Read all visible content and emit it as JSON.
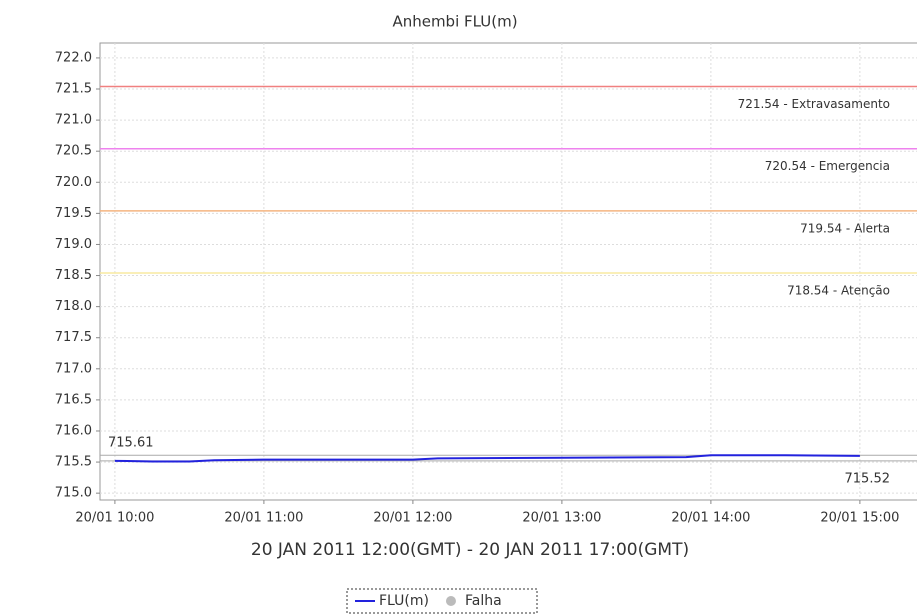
{
  "chart_data": {
    "type": "line",
    "title": "Anhembi FLU(m)",
    "subtitle": "20 JAN 2011 12:00(GMT) - 20 JAN 2011 17:00(GMT)",
    "x": [
      "20/01 10:00",
      "20/01 10:15",
      "20/01 10:30",
      "20/01 10:40",
      "20/01 11:00",
      "20/01 11:30",
      "20/01 12:00",
      "20/01 12:10",
      "20/01 13:00",
      "20/01 13:50",
      "20/01 14:00",
      "20/01 14:30",
      "20/01 15:00"
    ],
    "series": [
      {
        "name": "FLU(m)",
        "color": "#2222dd",
        "values": [
          715.52,
          715.51,
          715.51,
          715.53,
          715.54,
          715.54,
          715.54,
          715.56,
          715.57,
          715.58,
          715.61,
          715.61,
          715.6
        ]
      },
      {
        "name": "Falha",
        "color": "#bbbbbb",
        "values": [
          null,
          null,
          null,
          null,
          null,
          null,
          null,
          null,
          null,
          null,
          null,
          null,
          null
        ]
      }
    ],
    "thresholds": [
      {
        "value": 721.54,
        "label": "721.54 - Extravasamento",
        "color": "#f08080"
      },
      {
        "value": 720.54,
        "label": "720.54 - Emergencia",
        "color": "#ee82ee"
      },
      {
        "value": 719.54,
        "label": "719.54 - Alerta",
        "color": "#f4b480"
      },
      {
        "value": 718.54,
        "label": "718.54 - Atenção",
        "color": "#f8eaa0"
      }
    ],
    "reference_lines": [
      {
        "value": 715.61,
        "position": "left"
      },
      {
        "value": 715.52,
        "position": "right"
      }
    ],
    "xlim": [
      "20/01 09:54",
      "20/01 15:23"
    ],
    "xticks": [
      "20/01 10:00",
      "20/01 11:00",
      "20/01 12:00",
      "20/01 13:00",
      "20/01 14:00",
      "20/01 15:00"
    ],
    "ylim": [
      714.89,
      722.24
    ],
    "yticks": [
      {
        "value": 722,
        "label": "722.0"
      },
      {
        "value": 721.5,
        "label": "721.5"
      },
      {
        "value": 721,
        "label": "721.0"
      },
      {
        "value": 720.5,
        "label": "720.5"
      },
      {
        "value": 720,
        "label": "720.0"
      },
      {
        "value": 719.5,
        "label": "719.5"
      },
      {
        "value": 719,
        "label": "719.0"
      },
      {
        "value": 718.5,
        "label": "718.5"
      },
      {
        "value": 718,
        "label": "718.0"
      },
      {
        "value": 717.5,
        "label": "717.5"
      },
      {
        "value": 717,
        "label": "717.0"
      },
      {
        "value": 716.5,
        "label": "716.5"
      },
      {
        "value": 716,
        "label": "716.0"
      },
      {
        "value": 715.5,
        "label": "715.5"
      },
      {
        "value": 715,
        "label": "715.0"
      }
    ],
    "grid": true
  }
}
